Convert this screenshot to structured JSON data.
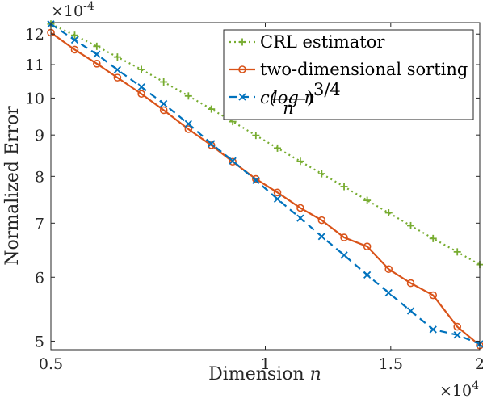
{
  "chart_data": {
    "type": "line",
    "xlabel": "Dimension",
    "xlabel_var": "n",
    "ylabel": "Normalized Error",
    "x_scale": "log",
    "y_scale": "log",
    "xlim": [
      5000,
      20000
    ],
    "ylim": [
      0.000488,
      0.00124
    ],
    "x_exponent_label": "×10",
    "x_exponent": "4",
    "y_exponent_label": "×10",
    "y_exponent": "-4",
    "x_ticks": [
      {
        "value": 5000,
        "label": "0.5"
      },
      {
        "value": 10000,
        "label": "1"
      },
      {
        "value": 15000,
        "label": "1.5"
      },
      {
        "value": 20000,
        "label": "2"
      }
    ],
    "y_ticks": [
      {
        "value": 0.0005,
        "label": "5"
      },
      {
        "value": 0.0006,
        "label": "6"
      },
      {
        "value": 0.0007,
        "label": "7"
      },
      {
        "value": 0.0008,
        "label": "8"
      },
      {
        "value": 0.0009,
        "label": "9"
      },
      {
        "value": 0.001,
        "label": "10"
      },
      {
        "value": 0.0011,
        "label": "11"
      },
      {
        "value": 0.0012,
        "label": "12"
      }
    ],
    "grid": false,
    "legend_position": "top-right",
    "x": [
      5000,
      5400,
      5800,
      6200,
      6700,
      7200,
      7800,
      8400,
      9000,
      9700,
      10400,
      11200,
      12000,
      12900,
      13900,
      14900,
      16000,
      17200,
      18600,
      20000
    ],
    "series": [
      {
        "name": "CRL estimator",
        "color": "#77ac30",
        "line_style": "dotted",
        "marker": "plus",
        "values": [
          0.001235,
          0.001196,
          0.001159,
          0.001124,
          0.001085,
          0.001047,
          0.001006,
          0.000969,
          0.000935,
          0.000899,
          0.000867,
          0.000835,
          0.000806,
          0.000777,
          0.000747,
          0.000721,
          0.000695,
          0.00067,
          0.000645,
          0.000622
        ]
      },
      {
        "name": "two-dimensional sorting",
        "color": "#d95319",
        "line_style": "solid",
        "marker": "circle",
        "values": [
          0.001205,
          0.001148,
          0.001103,
          0.00106,
          0.001012,
          0.000966,
          0.000915,
          0.000874,
          0.000834,
          0.000794,
          0.000764,
          0.000731,
          0.000706,
          0.000672,
          0.000655,
          0.000614,
          0.00059,
          0.00057,
          0.000521,
          0.000494
        ]
      },
      {
        "name": "c(log n / n)^{3/4}",
        "legend_label_c": "c(",
        "legend_label_num": "log n",
        "legend_label_den": "n",
        "legend_label_close": ")",
        "legend_label_exp": "3/4",
        "color": "#0072bd",
        "line_style": "dashed",
        "marker": "x",
        "values": [
          0.001235,
          0.00118,
          0.001133,
          0.001084,
          0.001032,
          0.000984,
          0.000929,
          0.000878,
          0.000836,
          0.000791,
          0.00075,
          0.00071,
          0.000674,
          0.000639,
          0.000604,
          0.000574,
          0.000545,
          0.000517,
          0.000509,
          0.000496
        ]
      }
    ]
  }
}
